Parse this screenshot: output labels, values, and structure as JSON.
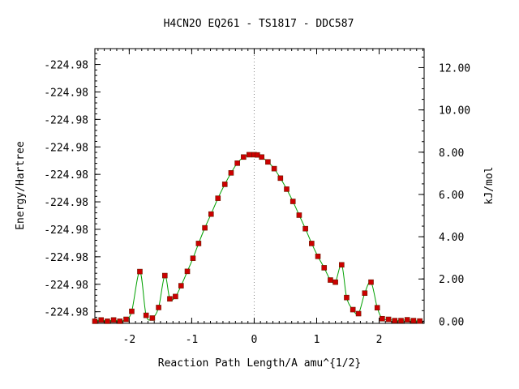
{
  "chart_data": {
    "type": "line",
    "title": "H4CN2O    EQ261 - TS1817 - DDC587",
    "xlabel": "Reaction Path Length/A amu^{1/2}",
    "ylabel_left": "Energy/Hartree",
    "ylabel_right": "kJ/mol",
    "xlim": [
      -2.55,
      2.72
    ],
    "ylim_right": [
      -0.1,
      12.9
    ],
    "x_ticks": [
      {
        "value": -2,
        "label": "-2"
      },
      {
        "value": -1,
        "label": "-1"
      },
      {
        "value": 0,
        "label": "0"
      },
      {
        "value": 1,
        "label": "1"
      },
      {
        "value": 2,
        "label": "2"
      }
    ],
    "left_ticks": [
      {
        "kj": 0.45,
        "label": "-224.98"
      },
      {
        "kj": 1.75,
        "label": "-224.98"
      },
      {
        "kj": 3.05,
        "label": "-224.98"
      },
      {
        "kj": 4.35,
        "label": "-224.98"
      },
      {
        "kj": 5.65,
        "label": "-224.98"
      },
      {
        "kj": 6.95,
        "label": "-224.98"
      },
      {
        "kj": 8.25,
        "label": "-224.98"
      },
      {
        "kj": 9.55,
        "label": "-224.98"
      },
      {
        "kj": 10.85,
        "label": "-224.98"
      },
      {
        "kj": 12.15,
        "label": "-224.98"
      }
    ],
    "right_ticks": [
      {
        "kj": 0,
        "label": "0.00"
      },
      {
        "kj": 2,
        "label": "2.00"
      },
      {
        "kj": 4,
        "label": "4.00"
      },
      {
        "kj": 6,
        "label": "6.00"
      },
      {
        "kj": 8,
        "label": "8.00"
      },
      {
        "kj": 10,
        "label": "10.00"
      },
      {
        "kj": 12,
        "label": "12.00"
      }
    ],
    "ts_marker_x": 0,
    "series": [
      {
        "line_color": "#00a000",
        "marker_color": "#cc0000",
        "x": [
          -2.55,
          -2.45,
          -2.35,
          -2.25,
          -2.15,
          -2.05,
          -1.96,
          -1.83,
          -1.73,
          -1.63,
          -1.53,
          -1.43,
          -1.35,
          -1.26,
          -1.17,
          -1.07,
          -0.98,
          -0.89,
          -0.79,
          -0.69,
          -0.58,
          -0.47,
          -0.37,
          -0.27,
          -0.17,
          -0.08,
          0.0,
          0.05,
          0.12,
          0.22,
          0.32,
          0.42,
          0.52,
          0.62,
          0.72,
          0.82,
          0.92,
          1.02,
          1.12,
          1.22,
          1.3,
          1.4,
          1.48,
          1.58,
          1.67,
          1.77,
          1.87,
          1.97,
          2.05,
          2.15,
          2.25,
          2.35,
          2.45,
          2.55,
          2.65
        ],
        "y": [
          0.0,
          0.06,
          0.0,
          0.06,
          0.0,
          0.09,
          0.47,
          2.35,
          0.28,
          0.15,
          0.65,
          2.16,
          1.06,
          1.17,
          1.68,
          2.36,
          2.98,
          3.68,
          4.42,
          5.07,
          5.82,
          6.48,
          7.02,
          7.48,
          7.77,
          7.88,
          7.88,
          7.87,
          7.77,
          7.54,
          7.22,
          6.77,
          6.25,
          5.67,
          5.02,
          4.38,
          3.68,
          3.07,
          2.53,
          1.95,
          1.85,
          2.67,
          1.12,
          0.55,
          0.36,
          1.33,
          1.85,
          0.64,
          0.12,
          0.09,
          0.03,
          0.03,
          0.07,
          0.03,
          0.01
        ]
      }
    ]
  }
}
